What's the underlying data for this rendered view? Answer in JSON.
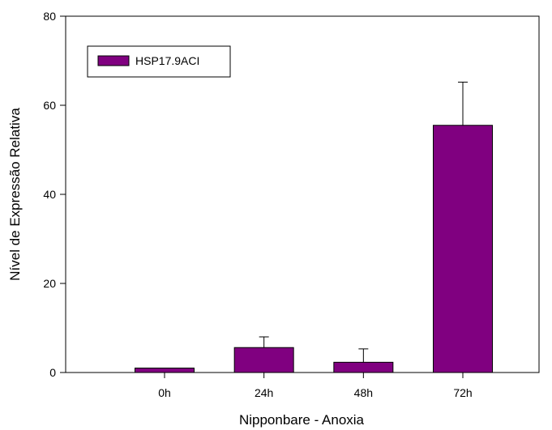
{
  "chart_data": {
    "type": "bar",
    "title": "",
    "xlabel": "Nipponbare - Anoxia",
    "ylabel": "Nível de Expressão Relativa",
    "categories": [
      "0h",
      "24h",
      "48h",
      "72h"
    ],
    "series": [
      {
        "name": "HSP17.9ACI",
        "values": [
          1.0,
          5.6,
          2.3,
          55.5
        ],
        "errors": [
          0,
          2.4,
          3.0,
          9.7
        ],
        "color": "#800080"
      }
    ],
    "ylim": [
      0,
      80
    ],
    "yticks": [
      0,
      20,
      40,
      60,
      80
    ],
    "grid": false,
    "legend_position": "top-left"
  }
}
